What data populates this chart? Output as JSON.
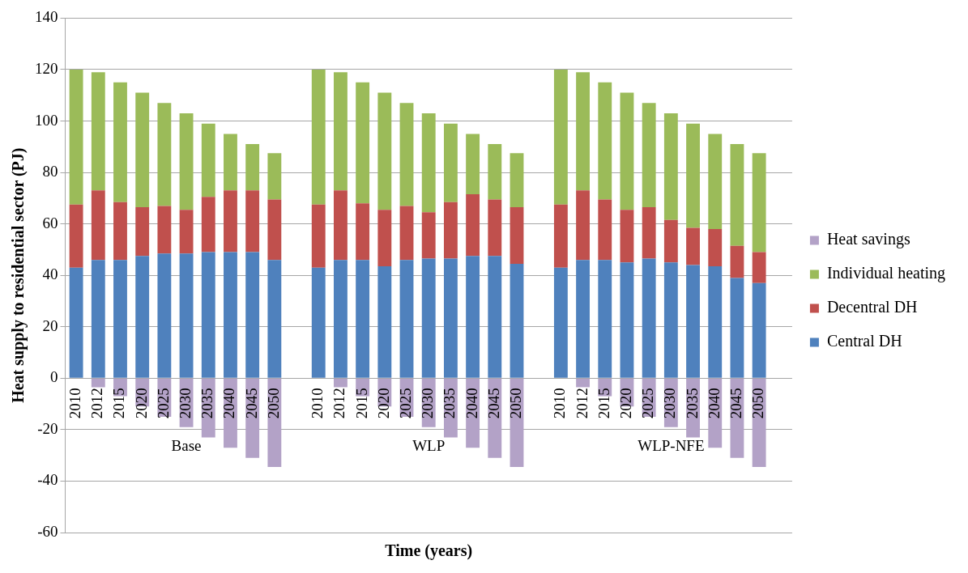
{
  "chart_data": {
    "type": "bar",
    "stacked": true,
    "xlabel": "Time (years)",
    "ylabel": "Heat supply to residential sector (PJ)",
    "categories": [
      "2010",
      "2012",
      "2015",
      "2020",
      "2025",
      "2030",
      "2035",
      "2040",
      "2045",
      "2050",
      null,
      "2010",
      "2012",
      "2015",
      "2020",
      "2025",
      "2030",
      "2035",
      "2040",
      "2045",
      "2050",
      null,
      "2010",
      "2012",
      "2015",
      "2020",
      "2025",
      "2030",
      "2035",
      "2040",
      "2045",
      "2050",
      null
    ],
    "series": [
      {
        "name": "Central DH",
        "color": "#4f81bd",
        "values": [
          43,
          46,
          46,
          47.5,
          48.5,
          48.5,
          49,
          49,
          49,
          46,
          null,
          43,
          46,
          46,
          43.5,
          46,
          46.5,
          46.5,
          47.5,
          47.5,
          44.5,
          null,
          43,
          46,
          46,
          45,
          46.5,
          45,
          44,
          43.5,
          39,
          37,
          null
        ]
      },
      {
        "name": "Decentral DH",
        "color": "#c0504d",
        "values": [
          24.5,
          27,
          22.5,
          19,
          18.5,
          17,
          21.5,
          24,
          24,
          23.5,
          null,
          24.5,
          27,
          22,
          22,
          21,
          18,
          22,
          24,
          22,
          22,
          null,
          24.5,
          27,
          23.5,
          20.5,
          20,
          16.5,
          14.5,
          14.5,
          12.5,
          12,
          null
        ]
      },
      {
        "name": "Individual heating",
        "color": "#9bbb59",
        "values": [
          52.5,
          46,
          46.5,
          44.5,
          40,
          37.5,
          28.5,
          22,
          18,
          18,
          null,
          52.5,
          46,
          47,
          45.5,
          40,
          38.5,
          30.5,
          23.5,
          21.5,
          21,
          null,
          52.5,
          46,
          45.5,
          45.5,
          40.5,
          41.5,
          40.5,
          37,
          39.5,
          38.5,
          null
        ]
      },
      {
        "name": "Heat savings",
        "color": "#b3a2c7",
        "values": [
          null,
          -3.5,
          -7,
          -11,
          -15,
          -19,
          -23,
          -27,
          -31,
          -34.5,
          null,
          null,
          -3.5,
          -7,
          -11,
          -15,
          -19,
          -23,
          -27,
          -31,
          -34.5,
          null,
          null,
          -3.5,
          -7,
          -11,
          -15,
          -19,
          -23,
          -27,
          -31,
          -34.5,
          null
        ]
      }
    ],
    "annotations": [
      "Base",
      "WLP",
      "WLP-NFE"
    ],
    "ylim": [
      -60,
      140
    ],
    "yticks": [
      -60,
      -40,
      -20,
      0,
      20,
      40,
      60,
      80,
      100,
      120,
      140
    ],
    "grid": "y",
    "legend": "right"
  }
}
